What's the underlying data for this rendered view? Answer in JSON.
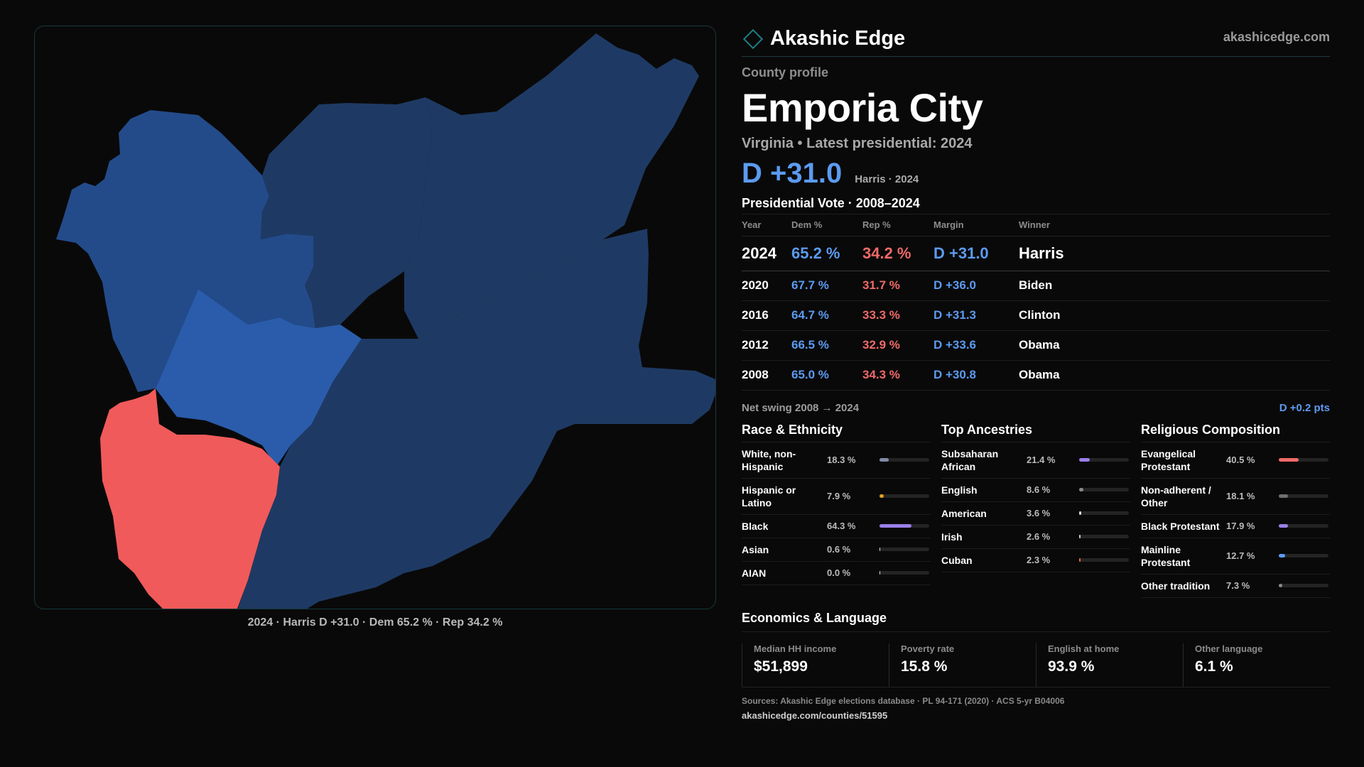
{
  "brand": {
    "name": "Akashic Edge",
    "domain": "akashicedge.com"
  },
  "profile": {
    "eyebrow": "County profile",
    "county": "Emporia City",
    "subline": "Virginia • Latest presidential: 2024",
    "margin_big": "D +31.0",
    "margin_note": "Harris · 2024"
  },
  "presidential": {
    "title": "Presidential Vote · 2008–2024",
    "headers": [
      "Year",
      "Dem %",
      "Rep %",
      "Margin",
      "Winner"
    ],
    "rows": [
      {
        "year": "2024",
        "dem": "65.2 %",
        "rep": "34.2 %",
        "margin": "D +31.0",
        "winner": "Harris"
      },
      {
        "year": "2020",
        "dem": "67.7 %",
        "rep": "31.7 %",
        "margin": "D +36.0",
        "winner": "Biden"
      },
      {
        "year": "2016",
        "dem": "64.7 %",
        "rep": "33.3 %",
        "margin": "D +31.3",
        "winner": "Clinton"
      },
      {
        "year": "2012",
        "dem": "66.5 %",
        "rep": "32.9 %",
        "margin": "D +33.6",
        "winner": "Obama"
      },
      {
        "year": "2008",
        "dem": "65.0 %",
        "rep": "34.3 %",
        "margin": "D +30.8",
        "winner": "Obama"
      }
    ],
    "swing_label": "Net swing 2008 → 2024",
    "swing_value": "D +0.2 pts"
  },
  "race": {
    "title": "Race & Ethnicity",
    "items": [
      {
        "name": "White, non-Hispanic",
        "pct": "18.3 %",
        "value": 18.3,
        "color": "#7f8aa6"
      },
      {
        "name": "Hispanic or Latino",
        "pct": "7.9 %",
        "value": 7.9,
        "color": "#e0a020"
      },
      {
        "name": "Black",
        "pct": "64.3 %",
        "value": 64.3,
        "color": "#9a7ee8"
      },
      {
        "name": "Asian",
        "pct": "0.6 %",
        "value": 0.6,
        "color": "#d0d0d0"
      },
      {
        "name": "AIAN",
        "pct": "0.0 %",
        "value": 0.0,
        "color": "#d0d0d0"
      }
    ]
  },
  "ancestry": {
    "title": "Top Ancestries",
    "items": [
      {
        "name": "Subsaharan African",
        "pct": "21.4 %",
        "value": 21.4,
        "color": "#9a7ee8"
      },
      {
        "name": "English",
        "pct": "8.6 %",
        "value": 8.6,
        "color": "#8a8a8a"
      },
      {
        "name": "American",
        "pct": "3.6 %",
        "value": 3.6,
        "color": "#d8d8d8"
      },
      {
        "name": "Irish",
        "pct": "2.6 %",
        "value": 2.6,
        "color": "#c8c8c8"
      },
      {
        "name": "Cuban",
        "pct": "2.3 %",
        "value": 2.3,
        "color": "#e06a3a"
      }
    ]
  },
  "religion": {
    "title": "Religious Composition",
    "items": [
      {
        "name": "Evangelical Protestant",
        "pct": "40.5 %",
        "value": 40.5,
        "color": "#f06a6a"
      },
      {
        "name": "Non-adherent / Other",
        "pct": "18.1 %",
        "value": 18.1,
        "color": "#6e6e6e"
      },
      {
        "name": "Black Protestant",
        "pct": "17.9 %",
        "value": 17.9,
        "color": "#9a7ee8"
      },
      {
        "name": "Mainline Protestant",
        "pct": "12.7 %",
        "value": 12.7,
        "color": "#5b9bf0"
      },
      {
        "name": "Other tradition",
        "pct": "7.3 %",
        "value": 7.3,
        "color": "#8a8a8a"
      }
    ]
  },
  "economics": {
    "title": "Economics & Language",
    "items": [
      {
        "label": "Median HH income",
        "value": "$51,899"
      },
      {
        "label": "Poverty rate",
        "value": "15.8 %"
      },
      {
        "label": "English at home",
        "value": "93.9 %"
      },
      {
        "label": "Other language",
        "value": "6.1 %"
      }
    ]
  },
  "sources": "Sources: Akashic Edge elections database · PL 94-171 (2020) · ACS 5-yr B04006",
  "source_url": "akashicedge.com/counties/51595",
  "map": {
    "caption": "2024 · Harris D +31.0 · Dem 65.2 % · Rep 34.2 %",
    "colors": {
      "dem_strong": "#1e3a64",
      "dem_mid": "#234b8a",
      "dem_light": "#2a5cab",
      "rep": "#f05a5a"
    }
  }
}
